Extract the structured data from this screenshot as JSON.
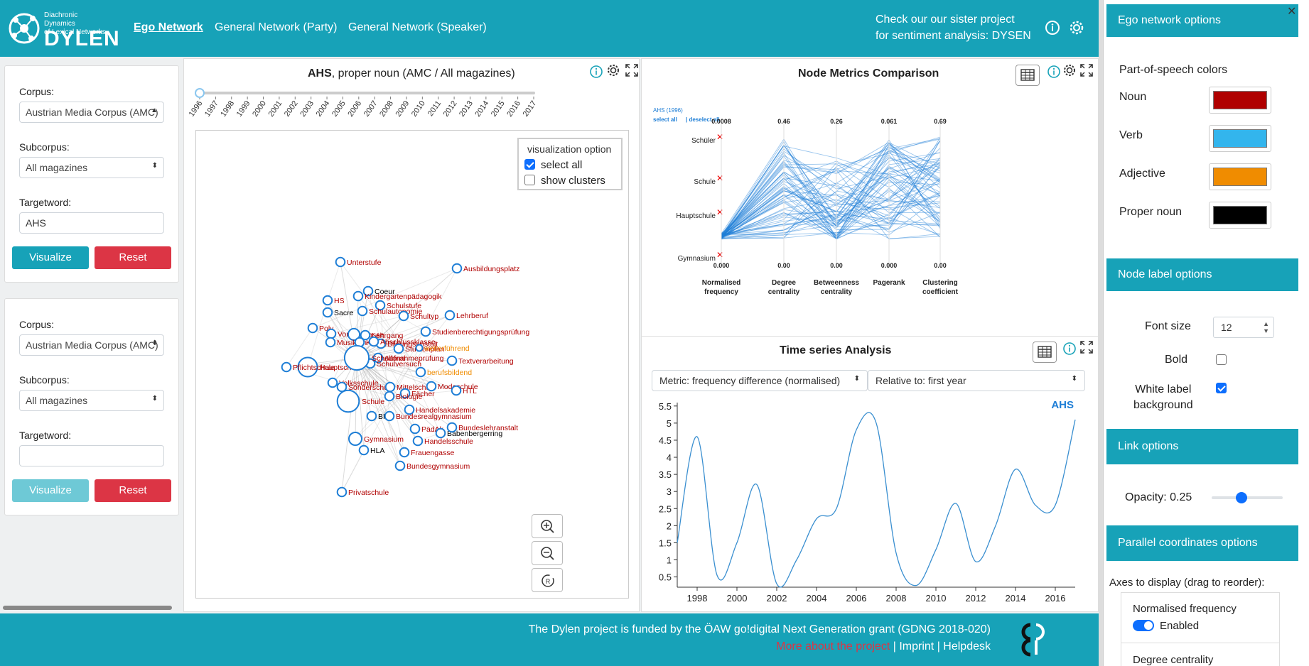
{
  "header": {
    "logo_small": [
      "Diachronic Dynamics",
      "of Lexical Networks"
    ],
    "logo_big": "DYLEN",
    "nav": [
      {
        "label": "Ego Network",
        "active": true
      },
      {
        "label": "General Network (Party)",
        "active": false
      },
      {
        "label": "General Network (Speaker)",
        "active": false
      }
    ],
    "sister_line1": "Check our our sister project",
    "sister_line2": "for sentiment analysis: DYSEN"
  },
  "left_panels": [
    {
      "corpus_label": "Corpus:",
      "corpus_value": "Austrian Media Corpus (AMC)",
      "subcorpus_label": "Subcorpus:",
      "subcorpus_value": "All magazines",
      "target_label": "Targetword:",
      "target_value": "AHS",
      "visualize": "Visualize",
      "reset": "Reset",
      "visualize_disabled": false
    },
    {
      "corpus_label": "Corpus:",
      "corpus_value": "Austrian Media Corpus (AMC)",
      "subcorpus_label": "Subcorpus:",
      "subcorpus_value": "All magazines",
      "target_label": "Targetword:",
      "target_value": "",
      "visualize": "Visualize",
      "reset": "Reset",
      "visualize_disabled": true
    }
  ],
  "network": {
    "title_bold": "AHS",
    "title_rest": ", proper noun (AMC / All magazines)",
    "years": [
      "1996",
      "1997",
      "1998",
      "1999",
      "2000",
      "2001",
      "2002",
      "2003",
      "2004",
      "2005",
      "2006",
      "2007",
      "2008",
      "2009",
      "2010",
      "2011",
      "2012",
      "2013",
      "2014",
      "2015",
      "2016",
      "2017"
    ],
    "vis_option_legend": "visualization option",
    "select_all": "select all",
    "show_clusters": "show clusters",
    "node_color": "#1e7ed6",
    "nodes": [
      {
        "label": "Unterstufe",
        "pos": "noun"
      },
      {
        "label": "Ausbildungsplatz",
        "pos": "noun"
      },
      {
        "label": "Coeur",
        "pos": "proper"
      },
      {
        "label": "HS",
        "pos": "noun"
      },
      {
        "label": "Kindergartenpädagogik",
        "pos": "noun"
      },
      {
        "label": "Schulstufe",
        "pos": "noun"
      },
      {
        "label": "Sacre",
        "pos": "proper"
      },
      {
        "label": "Schulautonomie",
        "pos": "noun"
      },
      {
        "label": "Schultyp",
        "pos": "noun"
      },
      {
        "label": "Lehrberuf",
        "pos": "noun"
      },
      {
        "label": "Poly",
        "pos": "noun"
      },
      {
        "label": "Vorschule",
        "pos": "noun"
      },
      {
        "label": "Klasse",
        "pos": "noun"
      },
      {
        "label": "Lehrgang",
        "pos": "noun"
      },
      {
        "label": "Studienberechtigungsprüfung",
        "pos": "noun"
      },
      {
        "label": "Musikum",
        "pos": "noun"
      },
      {
        "label": "Kolleg",
        "pos": "noun"
      },
      {
        "label": "Bildungsanstalt",
        "pos": "noun"
      },
      {
        "label": "Abschlussklasse",
        "pos": "noun"
      },
      {
        "label": "Studienplan",
        "pos": "noun"
      },
      {
        "label": "weiterführend",
        "pos": "adj"
      },
      {
        "label": "Aufnahmeprüfung",
        "pos": "noun"
      },
      {
        "label": "Textverarbeitung",
        "pos": "noun"
      },
      {
        "label": "Schulversuch",
        "pos": "noun"
      },
      {
        "label": "Hauptschule",
        "pos": "noun"
      },
      {
        "label": "Pflichtschule",
        "pos": "noun"
      },
      {
        "label": "Schulform",
        "pos": "noun"
      },
      {
        "label": "berufsbildend",
        "pos": "adj"
      },
      {
        "label": "Volksschule",
        "pos": "noun"
      },
      {
        "label": "Sonderschule",
        "pos": "noun"
      },
      {
        "label": "Mittelschule",
        "pos": "noun"
      },
      {
        "label": "Modeschule",
        "pos": "noun"
      },
      {
        "label": "HTL",
        "pos": "noun"
      },
      {
        "label": "Fächer",
        "pos": "noun"
      },
      {
        "label": "Biologie",
        "pos": "noun"
      },
      {
        "label": "Schule",
        "pos": "noun"
      },
      {
        "label": "Handelsakademie",
        "pos": "noun"
      },
      {
        "label": "BHS",
        "pos": "proper"
      },
      {
        "label": "Bundesrealgymnasium",
        "pos": "noun"
      },
      {
        "label": "PädAk",
        "pos": "noun"
      },
      {
        "label": "Babenbergerring",
        "pos": "proper"
      },
      {
        "label": "Bundeslehranstalt",
        "pos": "noun"
      },
      {
        "label": "Gymnasium",
        "pos": "noun"
      },
      {
        "label": "Handelsschule",
        "pos": "noun"
      },
      {
        "label": "HLA",
        "pos": "proper"
      },
      {
        "label": "Frauengasse",
        "pos": "noun"
      },
      {
        "label": "Bundesgymnasium",
        "pos": "noun"
      },
      {
        "label": "Privatschule",
        "pos": "noun"
      }
    ]
  },
  "metrics": {
    "title": "Node Metrics Comparison",
    "legend_label": "AHS (1996)",
    "select_all": "select all",
    "deselect_all": "deselect all",
    "axes": [
      {
        "name": [
          "Normalised",
          "frequency"
        ],
        "max": "0.0008",
        "min": "0.000"
      },
      {
        "name": [
          "Degree",
          "centrality"
        ],
        "max": "0.46",
        "min": "0.00"
      },
      {
        "name": [
          "Betweenness",
          "centrality"
        ],
        "max": "0.26",
        "min": "0.00"
      },
      {
        "name": [
          "Pagerank"
        ],
        "max": "0.061",
        "min": "0.000"
      },
      {
        "name": [
          "Clustering",
          "coefficient"
        ],
        "max": "0.69",
        "min": "0.00"
      }
    ],
    "row_labels": [
      "Schüler",
      "Schule",
      "Hauptschule",
      "Gymnasium"
    ]
  },
  "timeseries": {
    "title": "Time series Analysis",
    "metric_select": "Metric: frequency difference (normalised)",
    "relative_select": "Relative to: first year",
    "series_label": "AHS",
    "chart_data": {
      "type": "line",
      "x": [
        1997,
        1998,
        1999,
        2000,
        2001,
        2002,
        2003,
        2004,
        2005,
        2006,
        2007,
        2008,
        2009,
        2010,
        2011,
        2012,
        2013,
        2014,
        2015,
        2016,
        2017
      ],
      "series": [
        {
          "name": "AHS",
          "values": [
            1.5,
            4.6,
            0.55,
            1.5,
            3.2,
            0.3,
            1.0,
            2.2,
            2.5,
            4.8,
            5.0,
            1.2,
            0.25,
            1.3,
            2.65,
            0.95,
            2.0,
            3.65,
            2.6,
            2.6,
            5.1
          ]
        }
      ],
      "xticks": [
        "1998",
        "2000",
        "2002",
        "2004",
        "2006",
        "2008",
        "2010",
        "2012",
        "2014",
        "2016"
      ],
      "yticks": [
        "0.5",
        "1",
        "1.5",
        "2",
        "2.5",
        "3",
        "3.5",
        "4",
        "4.5",
        "5",
        "5.5"
      ],
      "ylim": [
        0.2,
        5.6
      ],
      "xlim": [
        1997,
        2017
      ],
      "color": "#3a8fd0"
    }
  },
  "footer": {
    "line1": "The Dylen project is funded by the ÖAW go!digital Next Generation grant (GDNG 2018-020)",
    "more": "More about the project",
    "imprint": "Imprint",
    "helpdesk": "Helpdesk",
    "sep": "|"
  },
  "options": {
    "ego_title": "Ego network options",
    "pos_colors_label": "Part-of-speech colors",
    "pos_colors": [
      {
        "label": "Noun",
        "color": "#b00000"
      },
      {
        "label": "Verb",
        "color": "#33b5ed"
      },
      {
        "label": "Adjective",
        "color": "#f08c00"
      },
      {
        "label": "Proper noun",
        "color": "#000000"
      }
    ],
    "node_label_title": "Node label options",
    "font_size_label": "Font size",
    "font_size_value": "12",
    "bold_label": "Bold",
    "white_bg_label": [
      "White label",
      "background"
    ],
    "link_title": "Link options",
    "opacity_label": "Opacity: 0.25",
    "opacity_value": 0.25,
    "pc_title": "Parallel coordinates options",
    "axes_label": "Axes to display (drag to reorder):",
    "axis_items": [
      {
        "label": "Normalised frequency",
        "state": "Enabled"
      },
      {
        "label": "Degree centrality",
        "state": ""
      }
    ]
  }
}
